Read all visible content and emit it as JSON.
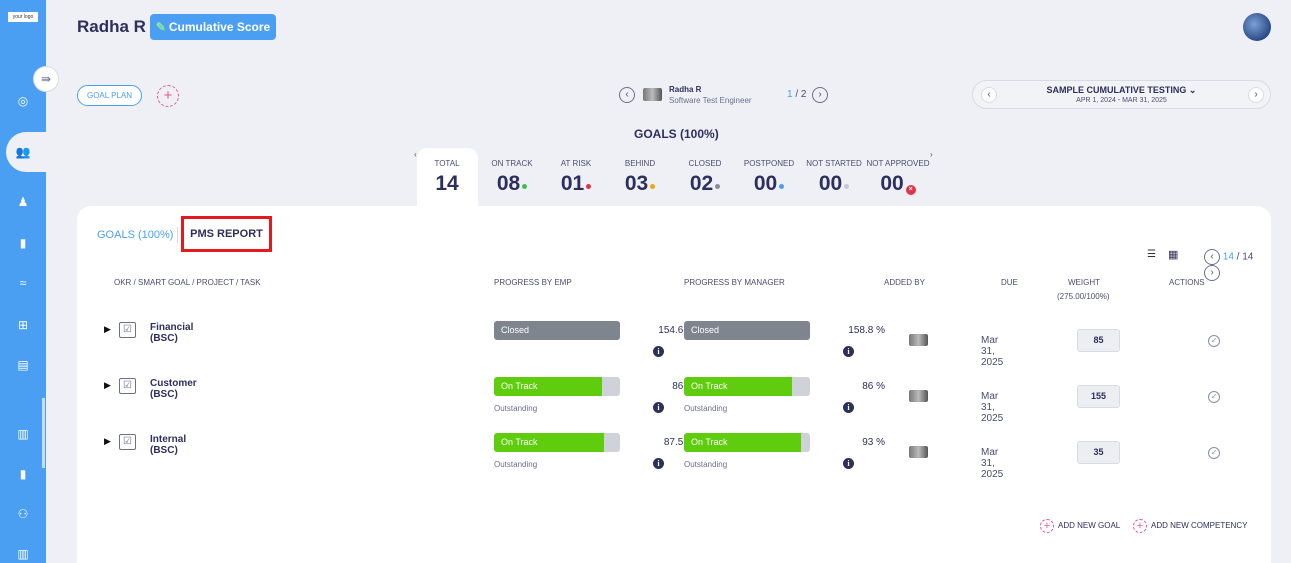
{
  "sidebar": {
    "logo_text": "your logo",
    "toggle_icon": "collapse-arrow-icon",
    "items": [
      {
        "name": "target-icon",
        "glyph": "◎"
      },
      {
        "name": "team-icon",
        "glyph": "👥"
      },
      {
        "name": "person-icon",
        "glyph": "♟"
      },
      {
        "name": "book-icon",
        "glyph": "▮"
      },
      {
        "name": "handshake-icon",
        "glyph": "≈"
      },
      {
        "name": "hierarchy-icon",
        "glyph": "⊞"
      },
      {
        "name": "report-icon",
        "glyph": "▤"
      },
      {
        "name": "chart-icon",
        "glyph": "▥"
      },
      {
        "name": "book2-icon",
        "glyph": "▮"
      },
      {
        "name": "group-icon",
        "glyph": "⚇"
      },
      {
        "name": "chart2-icon",
        "glyph": "▥"
      }
    ]
  },
  "header": {
    "user_name": "Radha R",
    "cumulative_button": "Cumulative Score"
  },
  "toolbar": {
    "goal_plan": "GOAL PLAN",
    "add": "+"
  },
  "employee": {
    "name": "Radha R",
    "role": "Software Test Engineer",
    "current_page": "1",
    "page_separator": " / ",
    "total_pages": "2"
  },
  "period": {
    "title": "SAMPLE CUMULATIVE TESTING",
    "dates": "APR 1, 2024 - MAR 31, 2025"
  },
  "goals_heading": "GOALS (100%)",
  "stats": [
    {
      "label": "TOTAL",
      "value": "14",
      "dot": null
    },
    {
      "label": "ON TRACK",
      "value": "08",
      "dot": "#3fbf4f"
    },
    {
      "label": "AT RISK",
      "value": "01",
      "dot": "#e0344a"
    },
    {
      "label": "BEHIND",
      "value": "03",
      "dot": "#f2a31a"
    },
    {
      "label": "CLOSED",
      "value": "02",
      "dot": "#8a8d96"
    },
    {
      "label": "POSTPONED",
      "value": "00",
      "dot": "#4a9ff2"
    },
    {
      "label": "NOT STARTED",
      "value": "00",
      "dot": "#c7c9d0"
    },
    {
      "label": "NOT APPROVED",
      "value": "00",
      "dot": "x"
    }
  ],
  "tabs": {
    "goals": "GOALS (100%)",
    "pms_report": "PMS REPORT"
  },
  "pagination": {
    "current": "14",
    "separator": " / ",
    "total": "14"
  },
  "table": {
    "headers": {
      "okr": "OKR / SMART GOAL / PROJECT / TASK",
      "progress_emp": "PROGRESS BY EMP",
      "progress_mgr": "PROGRESS BY MANAGER",
      "added_by": "ADDED BY",
      "due": "DUE",
      "weight": "WEIGHT",
      "weight_sub": "(275.00/100%)",
      "actions": "ACTIONS"
    },
    "rows": [
      {
        "title": "Financial (BSC)",
        "emp_status": "Closed",
        "emp_fill": 1.0,
        "emp_color": "#7e858f",
        "emp_pct": "154.6  %",
        "emp_rating": "",
        "mgr_status": "Closed",
        "mgr_fill": 1.0,
        "mgr_color": "#7e858f",
        "mgr_pct": "158.8  %",
        "mgr_rating": "",
        "due": "Mar 31, 2025",
        "weight": "85"
      },
      {
        "title": "Customer (BSC)",
        "emp_status": "On Track",
        "emp_fill": 0.86,
        "emp_color": "#5fcc0e",
        "emp_pct": "86  %",
        "emp_rating": "Outstanding",
        "mgr_status": "On Track",
        "mgr_fill": 0.86,
        "mgr_color": "#5fcc0e",
        "mgr_pct": "86  %",
        "mgr_rating": "Outstanding",
        "due": "Mar 31, 2025",
        "weight": "155"
      },
      {
        "title": "Internal (BSC)",
        "emp_status": "On Track",
        "emp_fill": 0.875,
        "emp_color": "#5fcc0e",
        "emp_pct": "87.5  %",
        "emp_rating": "Outstanding",
        "mgr_status": "On Track",
        "mgr_fill": 0.93,
        "mgr_color": "#5fcc0e",
        "mgr_pct": "93  %",
        "mgr_rating": "Outstanding",
        "due": "Mar 31, 2025",
        "weight": "35"
      }
    ]
  },
  "footer": {
    "add_goal": "ADD NEW GOAL",
    "add_competency": "ADD NEW COMPETENCY"
  }
}
